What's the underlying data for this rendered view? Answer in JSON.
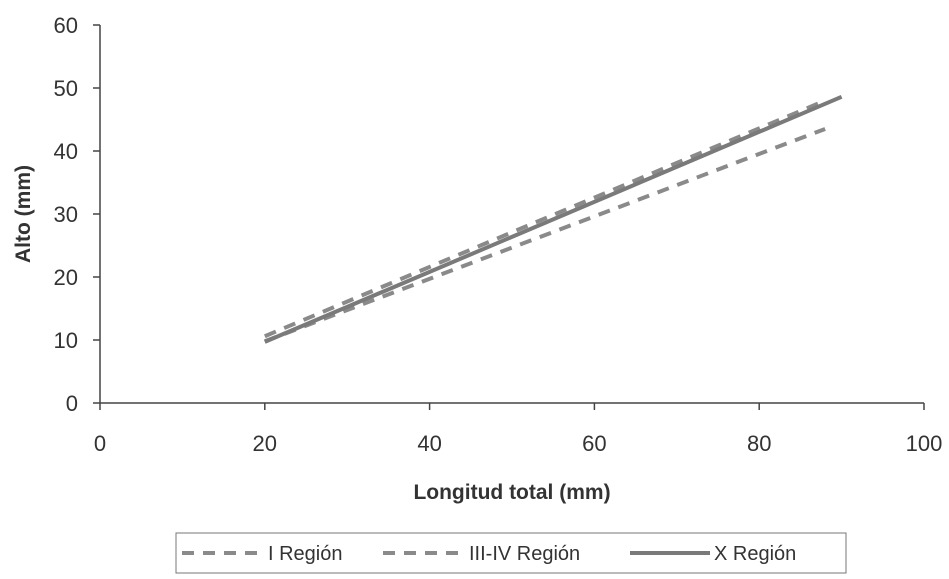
{
  "chart_data": {
    "type": "line",
    "title": "",
    "xlabel": "Longitud total (mm)",
    "ylabel": "Alto (mm)",
    "xlim": [
      0,
      100
    ],
    "ylim": [
      0,
      60
    ],
    "xticks": [
      0,
      20,
      40,
      60,
      80,
      100
    ],
    "yticks": [
      0,
      10,
      20,
      30,
      40,
      50,
      60
    ],
    "grid": false,
    "legend_position": "bottom",
    "series": [
      {
        "name": "I Región",
        "style": "dashed",
        "color": "#8a8a8a",
        "x": [
          20,
          88
        ],
        "y": [
          9.8,
          43.5
        ]
      },
      {
        "name": "III-IV Región",
        "style": "dashed",
        "color": "#8a8a8a",
        "x": [
          20,
          88
        ],
        "y": [
          10.6,
          48.0
        ]
      },
      {
        "name": "X Región",
        "style": "solid",
        "color": "#7a7a7a",
        "x": [
          20,
          90
        ],
        "y": [
          9.7,
          48.6
        ]
      }
    ]
  }
}
